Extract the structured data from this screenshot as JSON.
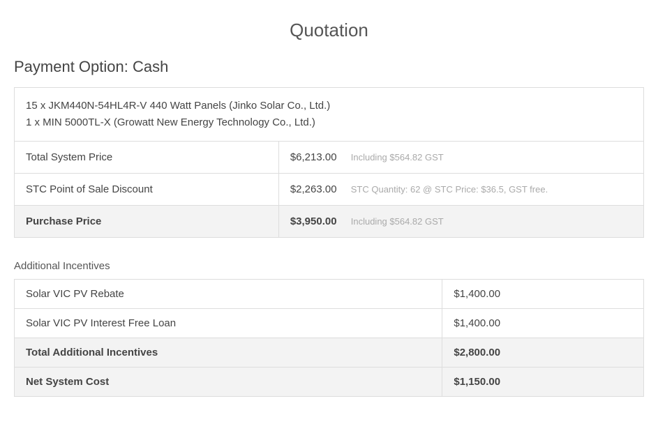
{
  "title": "Quotation",
  "payment_option_heading": "Payment Option: Cash",
  "items": {
    "line1": "15 x JKM440N-54HL4R-V 440 Watt Panels (Jinko Solar Co., Ltd.)",
    "line2": "1 x MIN 5000TL-X (Growatt New Energy Technology Co., Ltd.)"
  },
  "pricing": {
    "total_system_price": {
      "label": "Total System Price",
      "value": "$6,213.00",
      "note": "Including $564.82 GST"
    },
    "stc_discount": {
      "label": "STC Point of Sale Discount",
      "value": "$2,263.00",
      "note": "STC Quantity: 62 @ STC Price: $36.5, GST free."
    },
    "purchase_price": {
      "label": "Purchase Price",
      "value": "$3,950.00",
      "note": "Including $564.82 GST"
    }
  },
  "incentives": {
    "heading": "Additional Incentives",
    "solar_vic_rebate": {
      "label": "Solar VIC PV Rebate",
      "value": "$1,400.00"
    },
    "solar_vic_loan": {
      "label": "Solar VIC PV Interest Free Loan",
      "value": "$1,400.00"
    },
    "total": {
      "label": "Total Additional Incentives",
      "value": "$2,800.00"
    },
    "net_cost": {
      "label": "Net System Cost",
      "value": "$1,150.00"
    }
  },
  "colors": {
    "border": "#dddddd",
    "text": "#444444",
    "note": "#aaaaaa",
    "bold_bg": "#f3f3f3",
    "background": "#ffffff"
  }
}
